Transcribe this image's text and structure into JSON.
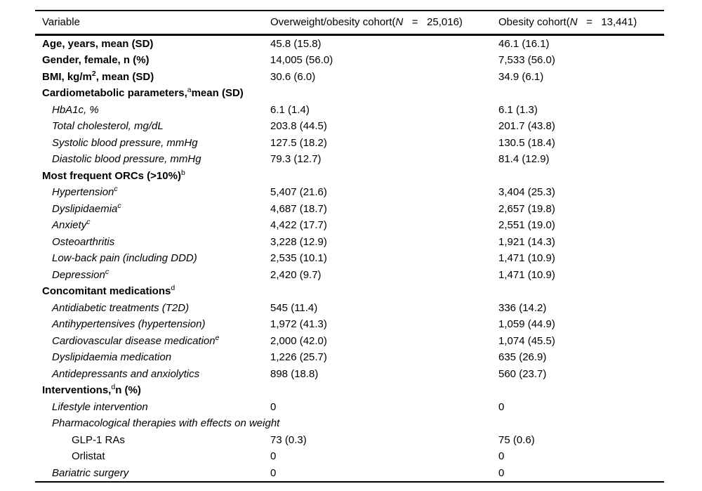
{
  "table": {
    "header": {
      "variable": "Variable",
      "col2_parts": [
        {
          "t": "Overweight/obesity cohort("
        },
        {
          "i": "N"
        },
        {
          "t": "   =   "
        },
        {
          "t": "25,016)"
        }
      ],
      "col3_parts": [
        {
          "t": "Obesity cohort("
        },
        {
          "i": "N"
        },
        {
          "t": "   =   "
        },
        {
          "t": "13,441)"
        }
      ]
    },
    "rows": [
      {
        "indent": 0,
        "style": "bold",
        "parts": [
          {
            "t": "Age, years, mean (SD)"
          }
        ],
        "v1": "45.8 (15.8)",
        "v2": "46.1 (16.1)"
      },
      {
        "indent": 0,
        "style": "bold",
        "parts": [
          {
            "t": "Gender, female, n (%)"
          }
        ],
        "v1": "14,005 (56.0)",
        "v2": "7,533 (56.0)"
      },
      {
        "indent": 0,
        "style": "bold",
        "parts": [
          {
            "t": "BMI, kg/m"
          },
          {
            "sup": "2",
            "bold": true
          },
          {
            "t": ", mean (SD)"
          }
        ],
        "v1": "30.6 (6.0)",
        "v2": "34.9 (6.1)"
      },
      {
        "indent": 0,
        "style": "bold",
        "parts": [
          {
            "t": "Cardiometabolic parameters,"
          },
          {
            "sup": "a"
          },
          {
            "t": "mean (SD)"
          }
        ],
        "v1": "",
        "v2": ""
      },
      {
        "indent": 1,
        "style": "italic",
        "parts": [
          {
            "t": "HbA1c, %"
          }
        ],
        "v1": "6.1 (1.4)",
        "v2": "6.1 (1.3)"
      },
      {
        "indent": 1,
        "style": "italic",
        "parts": [
          {
            "t": "Total cholesterol, mg/dL"
          }
        ],
        "v1": "203.8 (44.5)",
        "v2": "201.7 (43.8)"
      },
      {
        "indent": 1,
        "style": "italic",
        "parts": [
          {
            "t": "Systolic blood pressure, mmHg"
          }
        ],
        "v1": "127.5 (18.2)",
        "v2": "130.5 (18.4)"
      },
      {
        "indent": 1,
        "style": "italic",
        "parts": [
          {
            "t": "Diastolic blood pressure, mmHg"
          }
        ],
        "v1": "79.3 (12.7)",
        "v2": "81.4 (12.9)"
      },
      {
        "indent": 0,
        "style": "bold",
        "parts": [
          {
            "t": "Most frequent ORCs (>10%)"
          },
          {
            "sup": "b"
          }
        ],
        "v1": "",
        "v2": ""
      },
      {
        "indent": 1,
        "style": "italic",
        "parts": [
          {
            "t": "Hypertension"
          },
          {
            "sup": "c"
          }
        ],
        "v1": "5,407 (21.6)",
        "v2": "3,404 (25.3)"
      },
      {
        "indent": 1,
        "style": "italic",
        "parts": [
          {
            "t": "Dyslipidaemia"
          },
          {
            "sup": "c"
          }
        ],
        "v1": "4,687 (18.7)",
        "v2": "2,657 (19.8)"
      },
      {
        "indent": 1,
        "style": "italic",
        "parts": [
          {
            "t": "Anxiety"
          },
          {
            "sup": "c"
          }
        ],
        "v1": "4,422 (17.7)",
        "v2": "2,551 (19.0)"
      },
      {
        "indent": 1,
        "style": "italic",
        "parts": [
          {
            "t": "Osteoarthritis"
          }
        ],
        "v1": "3,228 (12.9)",
        "v2": "1,921 (14.3)"
      },
      {
        "indent": 1,
        "style": "italic",
        "parts": [
          {
            "t": "Low-back pain (including DDD)"
          }
        ],
        "v1": "2,535 (10.1)",
        "v2": "1,471 (10.9)"
      },
      {
        "indent": 1,
        "style": "italic",
        "parts": [
          {
            "t": "Depression"
          },
          {
            "sup": "c"
          }
        ],
        "v1": "2,420 (9.7)",
        "v2": "1,471 (10.9)"
      },
      {
        "indent": 0,
        "style": "bold",
        "parts": [
          {
            "t": "Concomitant medications"
          },
          {
            "sup": "d"
          }
        ],
        "v1": "",
        "v2": ""
      },
      {
        "indent": 1,
        "style": "italic",
        "parts": [
          {
            "t": "Antidiabetic treatments (T2D)"
          }
        ],
        "v1": "545 (11.4)",
        "v2": "336 (14.2)"
      },
      {
        "indent": 1,
        "style": "italic",
        "parts": [
          {
            "t": "Antihypertensives (hypertension)"
          }
        ],
        "v1": "1,972 (41.3)",
        "v2": "1,059 (44.9)"
      },
      {
        "indent": 1,
        "style": "italic",
        "parts": [
          {
            "t": "Cardiovascular disease medication"
          },
          {
            "sup": "e"
          }
        ],
        "v1": "2,000 (42.0)",
        "v2": "1,074 (45.5)"
      },
      {
        "indent": 1,
        "style": "italic",
        "parts": [
          {
            "t": "Dyslipidaemia medication"
          }
        ],
        "v1": "1,226 (25.7)",
        "v2": "635 (26.9)"
      },
      {
        "indent": 1,
        "style": "italic",
        "parts": [
          {
            "t": "Antidepressants and anxiolytics"
          }
        ],
        "v1": "898 (18.8)",
        "v2": "560 (23.7)"
      },
      {
        "indent": 0,
        "style": "bold",
        "parts": [
          {
            "t": "Interventions,"
          },
          {
            "sup": "d"
          },
          {
            "t": "n (%)"
          }
        ],
        "v1": "",
        "v2": ""
      },
      {
        "indent": 1,
        "style": "italic",
        "parts": [
          {
            "t": "Lifestyle intervention"
          }
        ],
        "v1": "0",
        "v2": "0"
      },
      {
        "indent": 1,
        "style": "italic",
        "parts": [
          {
            "t": "Pharmacological therapies with effects on weight"
          }
        ],
        "v1": "",
        "v2": ""
      },
      {
        "indent": 2,
        "style": "plain",
        "parts": [
          {
            "t": "GLP-1 RAs"
          }
        ],
        "v1": "73 (0.3)",
        "v2": "75 (0.6)"
      },
      {
        "indent": 2,
        "style": "plain",
        "parts": [
          {
            "t": "Orlistat"
          }
        ],
        "v1": "0",
        "v2": "0"
      },
      {
        "indent": 1,
        "style": "italic",
        "parts": [
          {
            "t": "Bariatric surgery"
          }
        ],
        "v1": "0",
        "v2": "0"
      }
    ]
  }
}
